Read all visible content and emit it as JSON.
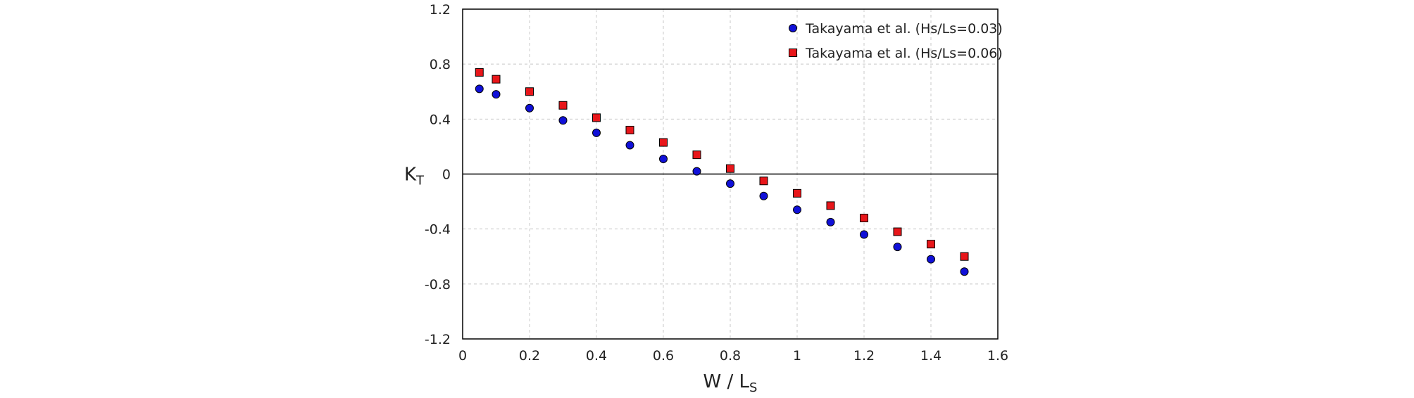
{
  "chart_data": {
    "type": "scatter",
    "title": "",
    "xlabel": {
      "main": "W / L",
      "sub": "S"
    },
    "ylabel": {
      "main": "K",
      "sub": "T"
    },
    "xlim": [
      0,
      1.6
    ],
    "ylim": [
      -1.2,
      1.2
    ],
    "xticks": [
      0,
      0.2,
      0.4,
      0.6,
      0.8,
      1,
      1.2,
      1.4,
      1.6
    ],
    "yticks": [
      -1.2,
      -0.8,
      -0.4,
      0,
      0.4,
      0.8,
      1.2
    ],
    "xtick_labels": [
      "0",
      "0.2",
      "0.4",
      "0.6",
      "0.8",
      "1",
      "1.2",
      "1.4",
      "1.6"
    ],
    "ytick_labels": [
      "-1.2",
      "-0.8",
      "-0.4",
      "0",
      "0.4",
      "0.8",
      "1.2"
    ],
    "grid": true,
    "legend_position": "top-right",
    "series": [
      {
        "name": "Takayama et al. (Hs/Ls=0.03)",
        "marker": "circle",
        "color": "#1010d8",
        "x": [
          0.05,
          0.1,
          0.2,
          0.3,
          0.4,
          0.5,
          0.6,
          0.7,
          0.8,
          0.9,
          1.0,
          1.1,
          1.2,
          1.3,
          1.4,
          1.5
        ],
        "y": [
          0.62,
          0.58,
          0.48,
          0.39,
          0.3,
          0.21,
          0.11,
          0.02,
          -0.07,
          -0.16,
          -0.26,
          -0.35,
          -0.44,
          -0.53,
          -0.62,
          -0.71
        ]
      },
      {
        "name": "Takayama et al. (Hs/Ls=0.06)",
        "marker": "square",
        "color": "#e8161a",
        "x": [
          0.05,
          0.1,
          0.2,
          0.3,
          0.4,
          0.5,
          0.6,
          0.7,
          0.8,
          0.9,
          1.0,
          1.1,
          1.2,
          1.3,
          1.4,
          1.5
        ],
        "y": [
          0.74,
          0.69,
          0.6,
          0.5,
          0.41,
          0.32,
          0.23,
          0.14,
          0.04,
          -0.05,
          -0.14,
          -0.23,
          -0.32,
          -0.42,
          -0.51,
          -0.6
        ]
      }
    ]
  }
}
